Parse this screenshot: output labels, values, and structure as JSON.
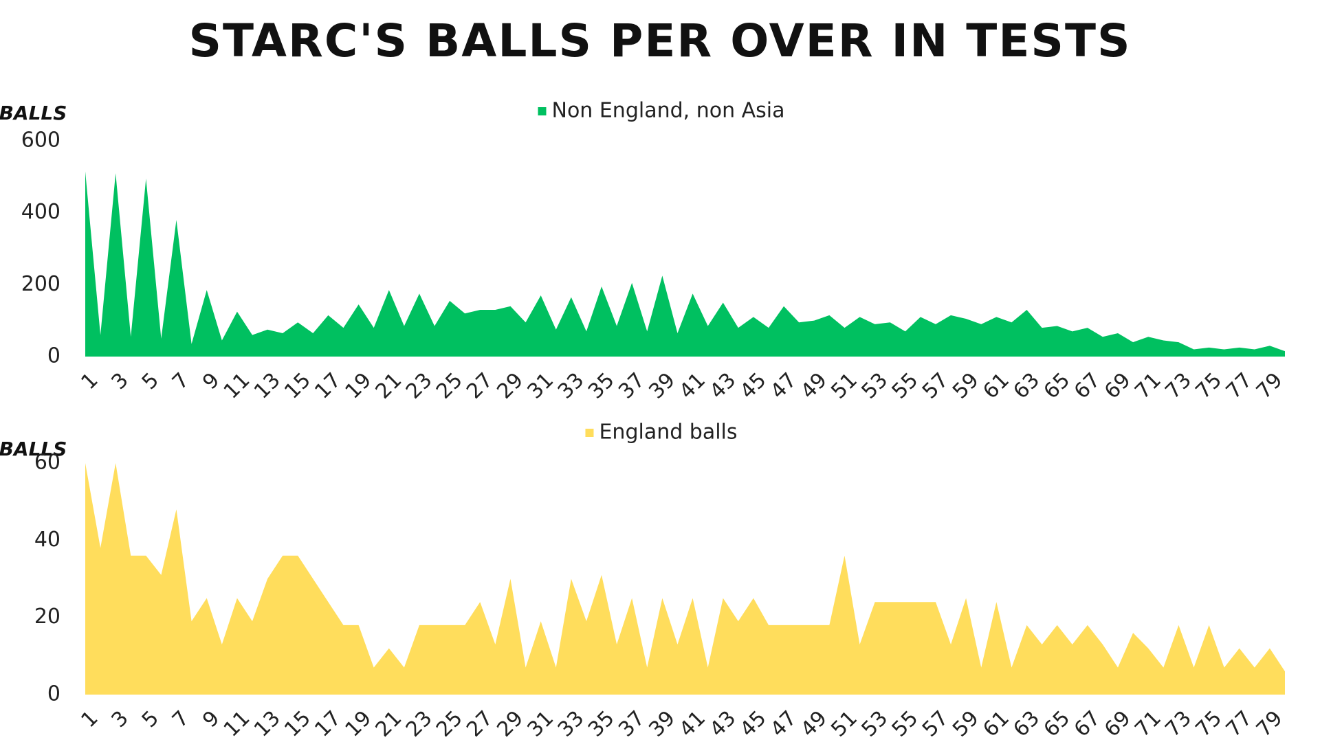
{
  "title": "STARC'S BALLS PER OVER IN TESTS",
  "chart_data": [
    {
      "type": "area",
      "ylabel": "BALLS",
      "categories": [
        1,
        null,
        3,
        null,
        5,
        null,
        7,
        null,
        9,
        null,
        11,
        null,
        13,
        null,
        15,
        null,
        17,
        null,
        19,
        null,
        21,
        null,
        23,
        null,
        25,
        null,
        27,
        null,
        29,
        null,
        31,
        null,
        33,
        null,
        35,
        null,
        37,
        null,
        39,
        null,
        41,
        null,
        43,
        null,
        45,
        null,
        47,
        null,
        49,
        null,
        51,
        null,
        53,
        null,
        55,
        null,
        57,
        null,
        59,
        null,
        61,
        null,
        63,
        null,
        65,
        null,
        67,
        null,
        69,
        null,
        71,
        null,
        73,
        null,
        75,
        null,
        77,
        null,
        79,
        null
      ],
      "series": [
        {
          "name": "Non England, non Asia",
          "color": "#00c060",
          "values": [
            515,
            60,
            510,
            55,
            495,
            50,
            380,
            35,
            185,
            45,
            125,
            60,
            75,
            65,
            95,
            65,
            115,
            80,
            145,
            80,
            185,
            85,
            175,
            85,
            155,
            120,
            130,
            130,
            140,
            95,
            170,
            75,
            165,
            70,
            195,
            85,
            205,
            70,
            225,
            65,
            175,
            85,
            150,
            80,
            110,
            80,
            140,
            95,
            100,
            115,
            80,
            110,
            90,
            95,
            70,
            110,
            90,
            115,
            105,
            90,
            110,
            95,
            130,
            80,
            85,
            70,
            80,
            55,
            65,
            40,
            55,
            45,
            40,
            20,
            25,
            20,
            25,
            20,
            30,
            15
          ]
        }
      ],
      "ylim": [
        0,
        600
      ],
      "yticks": [
        0,
        200,
        400,
        600
      ]
    },
    {
      "type": "area",
      "ylabel": "BALLS",
      "categories": [
        1,
        null,
        3,
        null,
        5,
        null,
        7,
        null,
        9,
        null,
        11,
        null,
        13,
        null,
        15,
        null,
        17,
        null,
        19,
        null,
        21,
        null,
        23,
        null,
        25,
        null,
        27,
        null,
        29,
        null,
        31,
        null,
        33,
        null,
        35,
        null,
        37,
        null,
        39,
        null,
        41,
        null,
        43,
        null,
        45,
        null,
        47,
        null,
        49,
        null,
        51,
        null,
        53,
        null,
        55,
        null,
        57,
        null,
        59,
        null,
        61,
        null,
        63,
        null,
        65,
        null,
        67,
        null,
        69,
        null,
        71,
        null,
        73,
        null,
        75,
        null,
        77,
        null,
        79,
        null
      ],
      "series": [
        {
          "name": "England balls",
          "color": "#ffdd5c",
          "values": [
            60,
            38,
            60,
            36,
            36,
            31,
            48,
            19,
            25,
            13,
            25,
            19,
            30,
            36,
            36,
            30,
            24,
            18,
            18,
            7,
            12,
            7,
            18,
            18,
            18,
            18,
            24,
            13,
            30,
            7,
            19,
            7,
            30,
            19,
            31,
            13,
            25,
            7,
            25,
            13,
            25,
            7,
            25,
            19,
            25,
            18,
            18,
            18,
            18,
            18,
            36,
            13,
            24,
            24,
            24,
            24,
            24,
            13,
            25,
            7,
            24,
            7,
            18,
            13,
            18,
            13,
            18,
            13,
            7,
            16,
            12,
            7,
            18,
            7,
            18,
            7,
            12,
            7,
            12,
            6
          ]
        }
      ],
      "ylim": [
        0,
        60
      ],
      "yticks": [
        0,
        20,
        40,
        60
      ]
    }
  ]
}
